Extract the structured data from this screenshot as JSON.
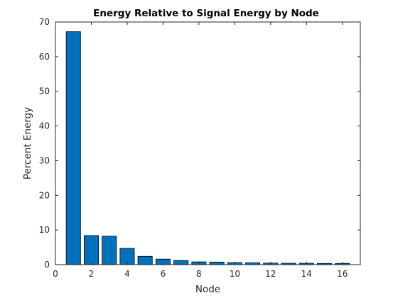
{
  "chart_data": {
    "type": "bar",
    "title": "Energy Relative to Signal Energy by Node",
    "xlabel": "Node",
    "ylabel": "Percent Energy",
    "x": [
      1,
      2,
      3,
      4,
      5,
      6,
      7,
      8,
      9,
      10,
      11,
      12,
      13,
      14,
      15,
      16
    ],
    "values": [
      67.2,
      8.4,
      8.2,
      4.7,
      2.4,
      1.6,
      1.2,
      0.8,
      0.75,
      0.6,
      0.55,
      0.45,
      0.4,
      0.4,
      0.35,
      0.35
    ],
    "xlim": [
      0,
      17
    ],
    "ylim": [
      0,
      70
    ],
    "xticks": [
      0,
      2,
      4,
      6,
      8,
      10,
      12,
      14,
      16
    ],
    "yticks": [
      0,
      10,
      20,
      30,
      40,
      50,
      60,
      70
    ],
    "grid": false,
    "bar_color": "#0072BD",
    "bar_edge_color": "#000000"
  }
}
